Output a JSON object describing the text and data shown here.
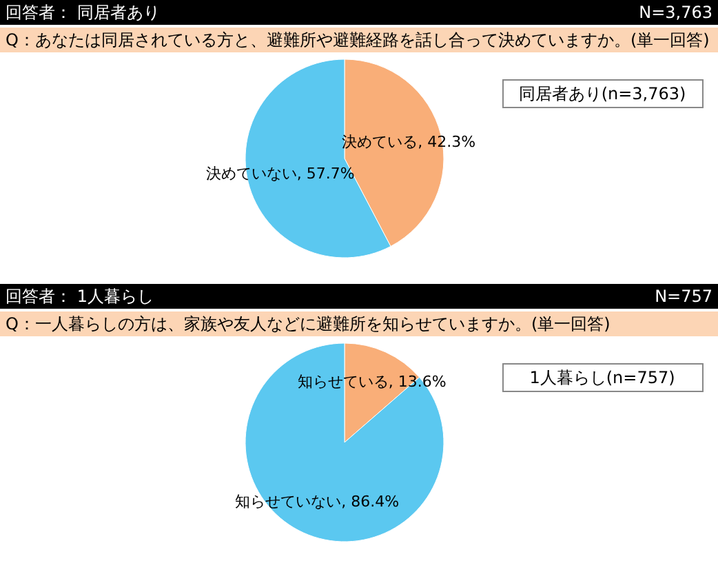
{
  "chart_data": [
    {
      "type": "pie",
      "title": "回答者： 同居者あり",
      "subtitle": "Q：あなたは同居されている方と、避難所や避難経路を話し合って決めていますか。(単一回答)",
      "annotations": [
        "N=3,763",
        "同居者あり(n=3,763)"
      ],
      "categories": [
        "決めている",
        "決めていない"
      ],
      "values": [
        42.3,
        57.7
      ],
      "colors": [
        "#f9ae78",
        "#5bc8f0"
      ],
      "value_labels": [
        "42.3%",
        "57.7%"
      ]
    },
    {
      "type": "pie",
      "title": "回答者： 1人暮らし",
      "subtitle": "Q：一人暮らしの方は、家族や友人などに避難所を知らせていますか。(単一回答)",
      "annotations": [
        "N=757",
        "1人暮らし(n=757)"
      ],
      "categories": [
        "知らせている",
        "知らせていない"
      ],
      "values": [
        13.6,
        86.4
      ],
      "colors": [
        "#f9ae78",
        "#5bc8f0"
      ],
      "value_labels": [
        "13.6%",
        "86.4%"
      ]
    }
  ]
}
